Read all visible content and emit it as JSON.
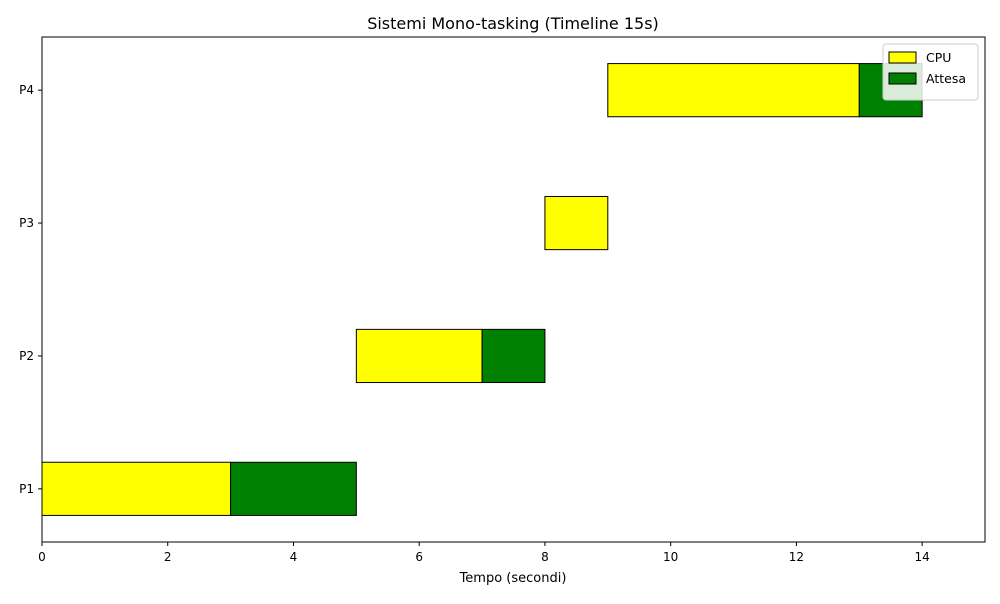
{
  "chart_data": {
    "type": "bar",
    "orientation": "horizontal-gantt",
    "title": "Sistemi Mono-tasking (Timeline 15s)",
    "xlabel": "Tempo (secondi)",
    "ylabel": "",
    "xlim": [
      0,
      15
    ],
    "x_ticks": [
      0,
      2,
      4,
      6,
      8,
      10,
      12,
      14
    ],
    "grid": false,
    "legend_position": "top-right",
    "categories": [
      "P1",
      "P2",
      "P3",
      "P4"
    ],
    "series": [
      {
        "name": "CPU",
        "color": "#ffff00",
        "segments": [
          {
            "process": "P1",
            "start": 0,
            "end": 3
          },
          {
            "process": "P2",
            "start": 5,
            "end": 7
          },
          {
            "process": "P3",
            "start": 8,
            "end": 9
          },
          {
            "process": "P4",
            "start": 9,
            "end": 13
          }
        ]
      },
      {
        "name": "Attesa",
        "color": "#008000",
        "segments": [
          {
            "process": "P1",
            "start": 3,
            "end": 5
          },
          {
            "process": "P2",
            "start": 7,
            "end": 8
          },
          {
            "process": "P4",
            "start": 13,
            "end": 14
          }
        ]
      }
    ]
  }
}
